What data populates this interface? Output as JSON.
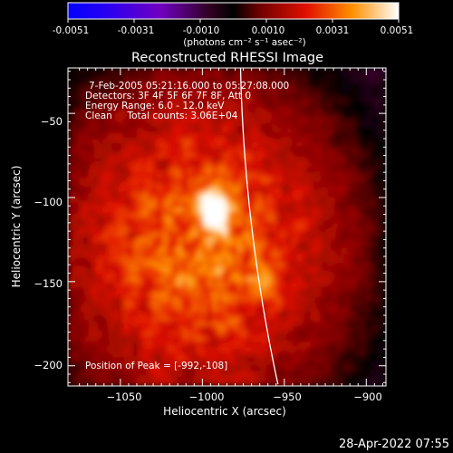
{
  "colorbar": {
    "tick_labels": [
      "-0.0051",
      "-0.0031",
      "-0.0010",
      "0.0010",
      "0.0031",
      "0.0051"
    ],
    "units": "(photons cm⁻² s⁻¹ asec⁻²)",
    "min": -0.0051,
    "max": 0.0051
  },
  "title": "Reconstructed RHESSI Image",
  "info": {
    "time_range": "7-Feb-2005 05:21:16.000 to 05:27:08.000",
    "detectors": "Detectors: 3F 4F 5F 6F 7F 8F, Att 0",
    "energy_range": "Energy Range: 6.0 - 12.0 keV",
    "method_counts": "Clean     Total counts: 3.06E+04",
    "peak": "Position of Peak = [-992,-108]"
  },
  "axes": {
    "xlabel": "Heliocentric X (arcsec)",
    "ylabel": "Heliocentric Y (arcsec)",
    "x_ticks": [
      "−1050",
      "−1000",
      "−950",
      "−900"
    ],
    "y_ticks": [
      "−50",
      "−100",
      "−150",
      "−200"
    ]
  },
  "chart_data": {
    "type": "heatmap",
    "x_range": [
      -1082,
      -888
    ],
    "y_range": [
      -212,
      -23
    ],
    "x_tick_values": [
      -1050,
      -1000,
      -950,
      -900
    ],
    "y_tick_values": [
      -50,
      -100,
      -150,
      -200
    ],
    "peak": [
      -992,
      -108
    ],
    "limb_color": "#ffffff"
  },
  "footer": {
    "timestamp": "28-Apr-2022 07:55"
  }
}
